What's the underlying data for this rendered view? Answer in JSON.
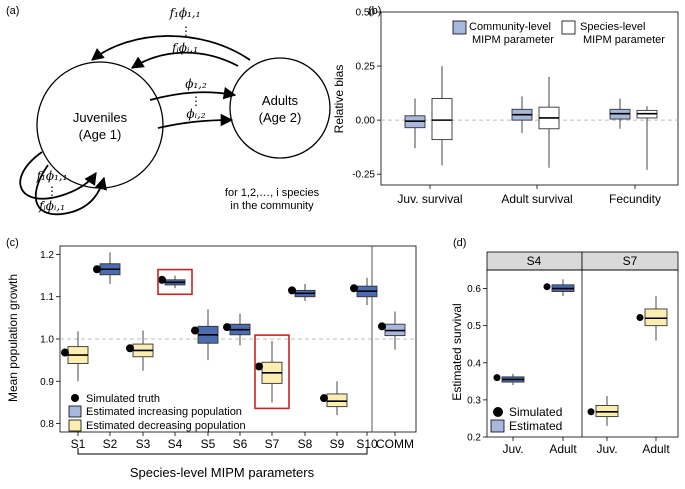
{
  "colors": {
    "comm_fill": "#a7b8dc",
    "blue_fill": "#4b6cb0",
    "yellow_fill": "#fbeeb0",
    "highlight": "#cc2222",
    "dash": "#bdbdbd",
    "strip": "#d9d9d9"
  },
  "panel_a": {
    "label": "(a)",
    "node_juvenile": [
      "Juveniles",
      "(Age 1)"
    ],
    "node_adult": [
      "Adults",
      "(Age 2)"
    ],
    "arrow_top_1": "f₁ϕ₁,₁",
    "arrow_top_2": "fᵢϕᵢ,₁",
    "arrow_mid_1": "ϕ₁,₂",
    "arrow_mid_2": "ϕᵢ,₂",
    "arrow_loop_1": "f₁ϕ₁,₁",
    "arrow_loop_2": "fᵢϕᵢ,₁",
    "dots": "⋮",
    "note": [
      "for 1,2,…, i species",
      "in the community"
    ]
  },
  "chart_data": [
    {
      "panel": "(b)",
      "type": "box",
      "ylabel": "Relative bias",
      "ylim": [
        -0.3,
        0.5
      ],
      "yticks": [
        -0.25,
        0,
        0.25,
        0.5
      ],
      "ytick_labels": [
        "-0.25",
        "0.00",
        "0.25",
        "0.50"
      ],
      "reference_line": 0,
      "categories": [
        "Juv. survival",
        "Adult survival",
        "Fecundity"
      ],
      "legend": [
        "Community-level MIPM parameter",
        "Species-level MIPM parameter"
      ],
      "legend_lines": [
        [
          "Community-level",
          "MIPM parameter"
        ],
        [
          "Species-level",
          "MIPM parameter"
        ]
      ],
      "legend_position": "top",
      "series": [
        {
          "name": "Community-level MIPM parameter",
          "boxes": [
            {
              "min": -0.13,
              "q1": -0.035,
              "med": -0.005,
              "q3": 0.02,
              "max": 0.1
            },
            {
              "min": -0.06,
              "q1": 0.0,
              "med": 0.025,
              "q3": 0.05,
              "max": 0.11
            },
            {
              "min": -0.04,
              "q1": 0.005,
              "med": 0.03,
              "q3": 0.05,
              "max": 0.1
            }
          ]
        },
        {
          "name": "Species-level MIPM parameter",
          "boxes": [
            {
              "min": -0.21,
              "q1": -0.09,
              "med": 0.0,
              "q3": 0.1,
              "max": 0.25
            },
            {
              "min": -0.22,
              "q1": -0.04,
              "med": 0.01,
              "q3": 0.06,
              "max": 0.2
            },
            {
              "min": -0.23,
              "q1": 0.01,
              "med": 0.03,
              "q3": 0.045,
              "max": 0.065
            }
          ]
        }
      ]
    },
    {
      "panel": "(c)",
      "type": "box",
      "ylabel": "Mean population growth",
      "xlabel": "Species-level MIPM parameters",
      "ylim": [
        0.78,
        1.22
      ],
      "yticks": [
        0.8,
        0.9,
        1.0,
        1.1,
        1.2
      ],
      "ytick_labels": [
        "0.8",
        "0.9",
        "1.0",
        "1.1",
        "1.2"
      ],
      "reference_line": 1.0,
      "categories": [
        "S1",
        "S2",
        "S3",
        "S4",
        "S5",
        "S6",
        "S7",
        "S8",
        "S9",
        "S10",
        "COMM"
      ],
      "legend": [
        "Simulated truth",
        "Estimated increasing population",
        "Estimated decreasing population"
      ],
      "legend_position": "bottom-left",
      "highlighted": [
        "S4",
        "S7"
      ],
      "boxes": [
        {
          "cat": "S1",
          "trend": "decreasing",
          "truth": 0.968,
          "min": 0.9,
          "q1": 0.942,
          "med": 0.962,
          "q3": 0.982,
          "max": 1.018
        },
        {
          "cat": "S2",
          "trend": "increasing",
          "truth": 1.165,
          "min": 1.13,
          "q1": 1.152,
          "med": 1.165,
          "q3": 1.178,
          "max": 1.205
        },
        {
          "cat": "S3",
          "trend": "decreasing",
          "truth": 0.978,
          "min": 0.925,
          "q1": 0.958,
          "med": 0.973,
          "q3": 0.988,
          "max": 1.02
        },
        {
          "cat": "S4",
          "trend": "increasing",
          "truth": 1.14,
          "min": 1.12,
          "q1": 1.128,
          "med": 1.134,
          "q3": 1.14,
          "max": 1.15
        },
        {
          "cat": "S5",
          "trend": "increasing",
          "truth": 1.02,
          "min": 0.95,
          "q1": 0.99,
          "med": 1.01,
          "q3": 1.03,
          "max": 1.07
        },
        {
          "cat": "S6",
          "trend": "increasing",
          "truth": 1.028,
          "min": 0.985,
          "q1": 1.01,
          "med": 1.022,
          "q3": 1.035,
          "max": 1.06
        },
        {
          "cat": "S7",
          "trend": "decreasing",
          "truth": 0.935,
          "min": 0.85,
          "q1": 0.895,
          "med": 0.92,
          "q3": 0.945,
          "max": 0.995
        },
        {
          "cat": "S8",
          "trend": "increasing",
          "truth": 1.115,
          "min": 1.09,
          "q1": 1.1,
          "med": 1.108,
          "q3": 1.115,
          "max": 1.13
        },
        {
          "cat": "S9",
          "trend": "decreasing",
          "truth": 0.86,
          "min": 0.82,
          "q1": 0.84,
          "med": 0.853,
          "q3": 0.87,
          "max": 0.9
        },
        {
          "cat": "S10",
          "trend": "increasing",
          "truth": 1.12,
          "min": 1.08,
          "q1": 1.1,
          "med": 1.113,
          "q3": 1.125,
          "max": 1.145
        },
        {
          "cat": "COMM",
          "trend": "community",
          "truth": 1.03,
          "min": 0.975,
          "q1": 1.008,
          "med": 1.02,
          "q3": 1.035,
          "max": 1.065
        }
      ]
    },
    {
      "panel": "(d)",
      "type": "box",
      "ylabel": "Estimated survival",
      "ylim": [
        0.2,
        0.65
      ],
      "yticks": [
        0.2,
        0.3,
        0.4,
        0.5,
        0.6
      ],
      "ytick_labels": [
        "0.2",
        "0.3",
        "0.4",
        "0.5",
        "0.6"
      ],
      "facets": [
        "S4",
        "S7"
      ],
      "categories": [
        "Juv.",
        "Adult"
      ],
      "legend": [
        "Simulated",
        "Estimated"
      ],
      "legend_position": "bottom-left",
      "boxes": [
        {
          "facet": "S4",
          "cat": "Juv.",
          "trend": "increasing",
          "truth": 0.36,
          "min": 0.34,
          "q1": 0.348,
          "med": 0.355,
          "q3": 0.362,
          "max": 0.37
        },
        {
          "facet": "S4",
          "cat": "Adult",
          "trend": "increasing",
          "truth": 0.605,
          "min": 0.58,
          "q1": 0.592,
          "med": 0.6,
          "q3": 0.61,
          "max": 0.625
        },
        {
          "facet": "S7",
          "cat": "Juv.",
          "trend": "decreasing",
          "truth": 0.268,
          "min": 0.23,
          "q1": 0.255,
          "med": 0.268,
          "q3": 0.285,
          "max": 0.31
        },
        {
          "facet": "S7",
          "cat": "Adult",
          "trend": "decreasing",
          "truth": 0.522,
          "min": 0.46,
          "q1": 0.5,
          "med": 0.52,
          "q3": 0.545,
          "max": 0.58
        }
      ]
    }
  ]
}
